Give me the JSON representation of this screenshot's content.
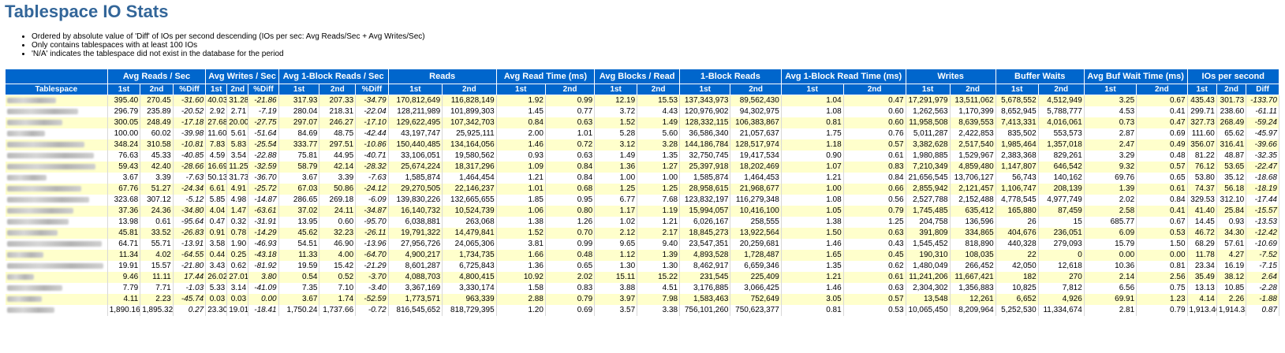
{
  "title": "Tablespace IO Stats",
  "notes": [
    "Ordered by absolute value of 'Diff' of IOs per second descending (IOs per sec: Avg Reads/Sec + Avg Writes/Sec)",
    "Only contains tablespaces with at least 100 IOs",
    "'N/A' indicates the tablespace did not exist in the database for the period"
  ],
  "table": {
    "groups": [
      {
        "label": "",
        "span": 1
      },
      {
        "label": "Avg Reads / Sec",
        "span": 3
      },
      {
        "label": "Avg Writes / Sec",
        "span": 3
      },
      {
        "label": "Avg 1-Block Reads / Sec",
        "span": 3
      },
      {
        "label": "Reads",
        "span": 2
      },
      {
        "label": "Avg Read Time (ms)",
        "span": 2
      },
      {
        "label": "Avg Blocks / Read",
        "span": 2
      },
      {
        "label": "1-Block Reads",
        "span": 2
      },
      {
        "label": "Avg 1-Block Read Time (ms)",
        "span": 2
      },
      {
        "label": "Writes",
        "span": 2
      },
      {
        "label": "Buffer Waits",
        "span": 2
      },
      {
        "label": "Avg Buf Wait Time (ms)",
        "span": 2
      },
      {
        "label": "IOs per second",
        "span": 3
      }
    ],
    "subheaders": [
      "Tablespace",
      "1st",
      "2nd",
      "%Diff",
      "1st",
      "2nd",
      "%Diff",
      "1st",
      "2nd",
      "%Diff",
      "1st",
      "2nd",
      "1st",
      "2nd",
      "1st",
      "2nd",
      "1st",
      "2nd",
      "1st",
      "2nd",
      "1st",
      "2nd",
      "1st",
      "2nd",
      "1st",
      "2nd",
      "1st",
      "2nd",
      "Diff"
    ],
    "pct_columns": [
      3,
      6,
      9,
      28
    ],
    "rows": [
      [
        "",
        "395.40",
        "270.45",
        "-31.60",
        "40.03",
        "31.28",
        "-21.86",
        "317.93",
        "207.33",
        "-34.79",
        "170,812,649",
        "116,828,149",
        "1.92",
        "0.99",
        "12.19",
        "15.53",
        "137,343,973",
        "89,562,430",
        "1.04",
        "0.47",
        "17,291,979",
        "13,511,062",
        "5,678,552",
        "4,512,949",
        "3.25",
        "0.67",
        "435.43",
        "301.73",
        "-133.70"
      ],
      [
        "",
        "296.79",
        "235.89",
        "-20.52",
        "2.92",
        "2.71",
        "-7.19",
        "280.04",
        "218.31",
        "-22.04",
        "128,211,989",
        "101,899,303",
        "1.45",
        "0.77",
        "3.72",
        "4.43",
        "120,976,902",
        "94,302,975",
        "1.08",
        "0.60",
        "1,262,563",
        "1,170,399",
        "8,652,945",
        "5,788,777",
        "4.53",
        "0.41",
        "299.71",
        "238.60",
        "-61.11"
      ],
      [
        "",
        "300.05",
        "248.49",
        "-17.18",
        "27.68",
        "20.00",
        "-27.75",
        "297.07",
        "246.27",
        "-17.10",
        "129,622,495",
        "107,342,703",
        "0.84",
        "0.63",
        "1.52",
        "1.49",
        "128,332,115",
        "106,383,867",
        "0.81",
        "0.60",
        "11,958,508",
        "8,639,553",
        "7,413,331",
        "4,016,061",
        "0.73",
        "0.47",
        "327.73",
        "268.49",
        "-59.24"
      ],
      [
        "",
        "100.00",
        "60.02",
        "-39.98",
        "11.60",
        "5.61",
        "-51.64",
        "84.69",
        "48.75",
        "-42.44",
        "43,197,747",
        "25,925,111",
        "2.00",
        "1.01",
        "5.28",
        "5.60",
        "36,586,340",
        "21,057,637",
        "1.75",
        "0.76",
        "5,011,287",
        "2,422,853",
        "835,502",
        "553,573",
        "2.87",
        "0.69",
        "111.60",
        "65.62",
        "-45.97"
      ],
      [
        "",
        "348.24",
        "310.58",
        "-10.81",
        "7.83",
        "5.83",
        "-25.54",
        "333.77",
        "297.51",
        "-10.86",
        "150,440,485",
        "134,164,056",
        "1.46",
        "0.72",
        "3.12",
        "3.28",
        "144,186,784",
        "128,517,974",
        "1.18",
        "0.57",
        "3,382,628",
        "2,517,540",
        "1,985,464",
        "1,357,018",
        "2.47",
        "0.49",
        "356.07",
        "316.41",
        "-39.66"
      ],
      [
        "",
        "76.63",
        "45.33",
        "-40.85",
        "4.59",
        "3.54",
        "-22.88",
        "75.81",
        "44.95",
        "-40.71",
        "33,106,051",
        "19,580,562",
        "0.93",
        "0.63",
        "1.49",
        "1.35",
        "32,750,745",
        "19,417,534",
        "0.90",
        "0.61",
        "1,980,885",
        "1,529,967",
        "2,383,368",
        "829,261",
        "3.29",
        "0.48",
        "81.22",
        "48.87",
        "-32.35"
      ],
      [
        "",
        "59.43",
        "42.40",
        "-28.66",
        "16.69",
        "11.25",
        "-32.59",
        "58.79",
        "42.14",
        "-28.32",
        "25,674,224",
        "18,317,296",
        "1.09",
        "0.84",
        "1.36",
        "1.27",
        "25,397,918",
        "18,202,469",
        "1.07",
        "0.83",
        "7,210,349",
        "4,859,480",
        "1,147,807",
        "646,542",
        "9.32",
        "0.57",
        "76.12",
        "53.65",
        "-22.47"
      ],
      [
        "",
        "3.67",
        "3.39",
        "-7.63",
        "50.13",
        "31.73",
        "-36.70",
        "3.67",
        "3.39",
        "-7.63",
        "1,585,874",
        "1,464,454",
        "1.21",
        "0.84",
        "1.00",
        "1.00",
        "1,585,874",
        "1,464,453",
        "1.21",
        "0.84",
        "21,656,545",
        "13,706,127",
        "56,743",
        "140,162",
        "69.76",
        "0.65",
        "53.80",
        "35.12",
        "-18.68"
      ],
      [
        "",
        "67.76",
        "51.27",
        "-24.34",
        "6.61",
        "4.91",
        "-25.72",
        "67.03",
        "50.86",
        "-24.12",
        "29,270,505",
        "22,146,237",
        "1.01",
        "0.68",
        "1.25",
        "1.25",
        "28,958,615",
        "21,968,677",
        "1.00",
        "0.66",
        "2,855,942",
        "2,121,457",
        "1,106,747",
        "208,139",
        "1.39",
        "0.61",
        "74.37",
        "56.18",
        "-18.19"
      ],
      [
        "",
        "323.68",
        "307.12",
        "-5.12",
        "5.85",
        "4.98",
        "-14.87",
        "286.65",
        "269.18",
        "-6.09",
        "139,830,226",
        "132,665,655",
        "1.85",
        "0.95",
        "6.77",
        "7.68",
        "123,832,197",
        "116,279,348",
        "1.08",
        "0.56",
        "2,527,788",
        "2,152,488",
        "4,778,545",
        "4,977,749",
        "2.02",
        "0.84",
        "329.53",
        "312.10",
        "-17.44"
      ],
      [
        "",
        "37.36",
        "24.36",
        "-34.80",
        "4.04",
        "1.47",
        "-63.61",
        "37.02",
        "24.11",
        "-34.87",
        "16,140,732",
        "10,524,739",
        "1.06",
        "0.80",
        "1.17",
        "1.19",
        "15,994,057",
        "10,416,100",
        "1.05",
        "0.79",
        "1,745,485",
        "635,412",
        "165,880",
        "87,459",
        "2.58",
        "0.41",
        "41.40",
        "25.84",
        "-15.57"
      ],
      [
        "",
        "13.98",
        "0.61",
        "-95.64",
        "0.47",
        "0.32",
        "-31.91",
        "13.95",
        "0.60",
        "-95.70",
        "6,038,881",
        "263,068",
        "1.38",
        "1.26",
        "1.02",
        "1.21",
        "6,026,167",
        "258,555",
        "1.38",
        "1.25",
        "204,758",
        "136,596",
        "26",
        "15",
        "685.77",
        "0.67",
        "14.45",
        "0.93",
        "-13.53"
      ],
      [
        "",
        "45.81",
        "33.52",
        "-26.83",
        "0.91",
        "0.78",
        "-14.29",
        "45.62",
        "32.23",
        "-26.11",
        "19,791,322",
        "14,479,841",
        "1.52",
        "0.70",
        "2.12",
        "2.17",
        "18,845,273",
        "13,922,564",
        "1.50",
        "0.63",
        "391,809",
        "334,865",
        "404,676",
        "236,051",
        "6.09",
        "0.53",
        "46.72",
        "34.30",
        "-12.42"
      ],
      [
        "",
        "64.71",
        "55.71",
        "-13.91",
        "3.58",
        "1.90",
        "-46.93",
        "54.51",
        "46.90",
        "-13.96",
        "27,956,726",
        "24,065,306",
        "3.81",
        "0.99",
        "9.65",
        "9.40",
        "23,547,351",
        "20,259,681",
        "1.46",
        "0.43",
        "1,545,452",
        "818,890",
        "440,328",
        "279,093",
        "15.79",
        "1.50",
        "68.29",
        "57.61",
        "-10.69"
      ],
      [
        "",
        "11.34",
        "4.02",
        "-64.55",
        "0.44",
        "0.25",
        "-43.18",
        "11.33",
        "4.00",
        "-64.70",
        "4,900,217",
        "1,734,735",
        "1.66",
        "0.48",
        "1.12",
        "1.39",
        "4,893,528",
        "1,728,487",
        "1.65",
        "0.45",
        "190,310",
        "108,035",
        "22",
        "0",
        "0.00",
        "0.00",
        "11.78",
        "4.27",
        "-7.52"
      ],
      [
        "",
        "19.91",
        "15.57",
        "-21.80",
        "3.43",
        "0.62",
        "-81.92",
        "19.59",
        "15.42",
        "-21.29",
        "8,601,287",
        "6,725,843",
        "1.36",
        "0.65",
        "1.30",
        "1.30",
        "8,462,917",
        "6,659,346",
        "1.35",
        "0.62",
        "1,480,049",
        "266,452",
        "42,050",
        "12,618",
        "10.36",
        "0.81",
        "23.34",
        "16.19",
        "-7.15"
      ],
      [
        "",
        "9.46",
        "11.11",
        "17.44",
        "26.02",
        "27.01",
        "3.80",
        "0.54",
        "0.52",
        "-3.70",
        "4,088,703",
        "4,800,415",
        "10.92",
        "2.02",
        "15.11",
        "15.22",
        "231,545",
        "225,409",
        "1.21",
        "0.61",
        "11,241,206",
        "11,667,421",
        "182",
        "270",
        "2.14",
        "2.56",
        "35.49",
        "38.12",
        "2.64"
      ],
      [
        "",
        "7.79",
        "7.71",
        "-1.03",
        "5.33",
        "3.14",
        "-41.09",
        "7.35",
        "7.10",
        "-3.40",
        "3,367,169",
        "3,330,174",
        "1.58",
        "0.83",
        "3.88",
        "4.51",
        "3,176,885",
        "3,066,425",
        "1.46",
        "0.63",
        "2,304,302",
        "1,356,883",
        "10,825",
        "7,812",
        "6.56",
        "0.75",
        "13.13",
        "10.85",
        "-2.28"
      ],
      [
        "",
        "4.11",
        "2.23",
        "-45.74",
        "0.03",
        "0.03",
        "0.00",
        "3.67",
        "1.74",
        "-52.59",
        "1,773,571",
        "963,339",
        "2.88",
        "0.79",
        "3.97",
        "7.98",
        "1,583,463",
        "752,649",
        "3.05",
        "0.57",
        "13,548",
        "12,261",
        "6,652",
        "4,926",
        "69.91",
        "1.23",
        "4.14",
        "2.26",
        "-1.88"
      ],
      [
        "",
        "1,890.16",
        "1,895.32",
        "0.27",
        "23.30",
        "19.01",
        "-18.41",
        "1,750.24",
        "1,737.66",
        "-0.72",
        "816,545,652",
        "818,729,395",
        "1.20",
        "0.69",
        "3.57",
        "3.38",
        "756,101,260",
        "750,623,377",
        "0.81",
        "0.53",
        "10,065,450",
        "8,209,964",
        "5,252,530",
        "11,334,674",
        "2.81",
        "0.79",
        "1,913.46",
        "1,914.33",
        "0.87"
      ]
    ]
  }
}
